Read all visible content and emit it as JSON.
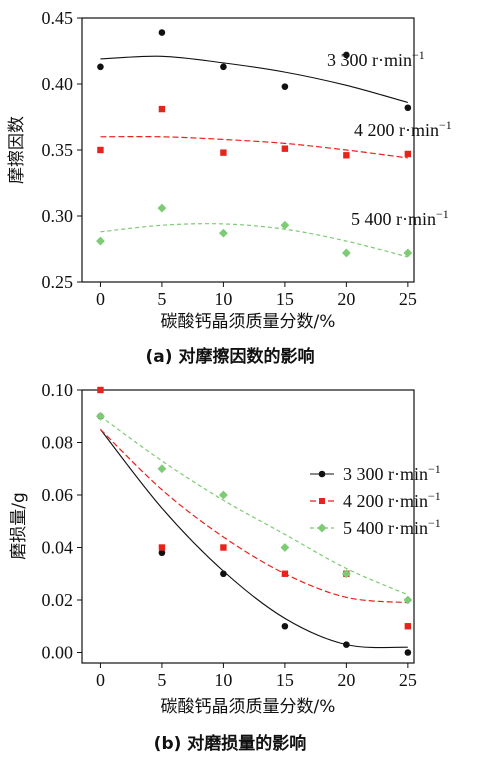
{
  "chart_data": [
    {
      "type": "scatter",
      "panel": "a",
      "caption": "(a) 对摩擦因数的影响",
      "xlabel": "碳酸钙晶须质量分数/%",
      "ylabel": "摩擦因数",
      "xlim": [
        -1.5,
        25.5
      ],
      "ylim": [
        0.25,
        0.45
      ],
      "xticks": [
        0,
        5,
        10,
        15,
        20,
        25
      ],
      "yticks": [
        0.25,
        0.3,
        0.35,
        0.4,
        0.45
      ],
      "ytick_labels": [
        "0.25",
        "0.30",
        "0.35",
        "0.40",
        "0.45"
      ],
      "xtick_labels": [
        "0",
        "5",
        "10",
        "15",
        "20",
        "25"
      ],
      "legend": "inline-labels",
      "x": [
        0,
        5,
        10,
        15,
        20,
        25
      ],
      "series": [
        {
          "name": "3 300 r·min",
          "superscript": "−1",
          "color": "#111111",
          "marker": "circle",
          "line_style": "solid",
          "values": [
            0.413,
            0.439,
            0.413,
            0.398,
            0.422,
            0.382
          ],
          "fit": [
            0.419,
            0.421,
            0.416,
            0.409,
            0.399,
            0.386
          ]
        },
        {
          "name": "4 200 r·min",
          "superscript": "−1",
          "color": "#e8231b",
          "marker": "square",
          "line_style": "dashed",
          "values": [
            0.35,
            0.381,
            0.348,
            0.351,
            0.346,
            0.347
          ],
          "fit": [
            0.36,
            0.36,
            0.358,
            0.355,
            0.35,
            0.344
          ]
        },
        {
          "name": "5 400 r·min",
          "superscript": "−1",
          "color": "#7dcb74",
          "marker": "diamond",
          "line_style": "dashed",
          "values": [
            0.281,
            0.306,
            0.287,
            0.293,
            0.272,
            0.272
          ],
          "fit": [
            0.288,
            0.293,
            0.294,
            0.29,
            0.281,
            0.269
          ]
        }
      ]
    },
    {
      "type": "scatter",
      "panel": "b",
      "caption": "(b) 对磨损量的影响",
      "xlabel": "碳酸钙晶须质量分数/%",
      "ylabel": "磨损量/g",
      "xlim": [
        -1.5,
        25.5
      ],
      "ylim": [
        -0.004,
        0.1
      ],
      "xticks": [
        0,
        5,
        10,
        15,
        20,
        25
      ],
      "yticks": [
        0.0,
        0.02,
        0.04,
        0.06,
        0.08,
        0.1
      ],
      "ytick_labels": [
        "0.00",
        "0.02",
        "0.04",
        "0.06",
        "0.08",
        "0.10"
      ],
      "xtick_labels": [
        "0",
        "5",
        "10",
        "15",
        "20",
        "25"
      ],
      "legend": "right",
      "x": [
        0,
        5,
        10,
        15,
        20,
        25
      ],
      "series": [
        {
          "name": "3 300 r·min",
          "superscript": "−1",
          "color": "#111111",
          "marker": "circle",
          "line_style": "solid",
          "values": [
            0.09,
            0.038,
            0.03,
            0.01,
            0.003,
            0.0
          ],
          "fit": [
            0.085,
            0.055,
            0.031,
            0.013,
            0.003,
            0.002
          ]
        },
        {
          "name": "4 200 r·min",
          "superscript": "−1",
          "color": "#e8231b",
          "marker": "square",
          "line_style": "dashed",
          "values": [
            0.1,
            0.04,
            0.04,
            0.03,
            0.03,
            0.01
          ],
          "fit": [
            0.085,
            0.062,
            0.044,
            0.03,
            0.021,
            0.019
          ]
        },
        {
          "name": "5 400 r·min",
          "superscript": "−1",
          "color": "#7dcb74",
          "marker": "diamond",
          "line_style": "dashed",
          "values": [
            0.09,
            0.07,
            0.06,
            0.04,
            0.03,
            0.02
          ],
          "fit": [
            0.09,
            0.073,
            0.058,
            0.045,
            0.032,
            0.022
          ]
        }
      ]
    }
  ]
}
